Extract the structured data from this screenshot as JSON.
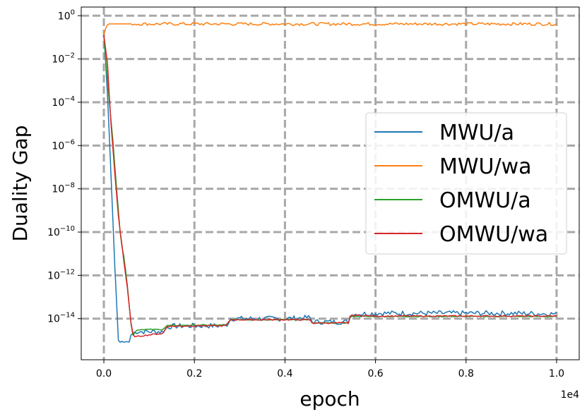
{
  "chart_data": {
    "type": "line",
    "xlabel": "epoch",
    "ylabel": "Duality Gap",
    "x_offset_label": "1e4",
    "xlim": [
      -500,
      10500
    ],
    "ylog_range": [
      -15.9,
      0.4
    ],
    "y_scale": "log",
    "grid": true,
    "legend_position": "center-right",
    "x_ticks": [
      {
        "value": 0,
        "label": "0.0"
      },
      {
        "value": 2000,
        "label": "0.2"
      },
      {
        "value": 4000,
        "label": "0.4"
      },
      {
        "value": 6000,
        "label": "0.6"
      },
      {
        "value": 8000,
        "label": "0.8"
      },
      {
        "value": 10000,
        "label": "1.0"
      }
    ],
    "y_ticks": [
      {
        "exp": 0,
        "base": "10",
        "sup": "0"
      },
      {
        "exp": -2,
        "base": "10",
        "sup": "−2"
      },
      {
        "exp": -4,
        "base": "10",
        "sup": "−4"
      },
      {
        "exp": -6,
        "base": "10",
        "sup": "−6"
      },
      {
        "exp": -8,
        "base": "10",
        "sup": "−8"
      },
      {
        "exp": -10,
        "base": "10",
        "sup": "−10"
      },
      {
        "exp": -12,
        "base": "10",
        "sup": "−12"
      },
      {
        "exp": -14,
        "base": "10",
        "sup": "−14"
      }
    ],
    "series": [
      {
        "name": "MWU/a",
        "color": "#1f77b4",
        "noise": 0.12,
        "points": [
          [
            0,
            -0.9
          ],
          [
            50,
            -2.5
          ],
          [
            100,
            -4.5
          ],
          [
            150,
            -7.0
          ],
          [
            200,
            -9.5
          ],
          [
            240,
            -11.5
          ],
          [
            280,
            -13.2
          ],
          [
            300,
            -14.3
          ],
          [
            320,
            -15.0
          ],
          [
            350,
            -15.1
          ],
          [
            400,
            -15.05
          ],
          [
            450,
            -15.1
          ],
          [
            500,
            -15.05
          ],
          [
            550,
            -15.1
          ],
          [
            580,
            -15.05
          ],
          [
            600,
            -14.75
          ],
          [
            700,
            -14.6
          ],
          [
            1000,
            -14.6
          ],
          [
            1300,
            -14.6
          ],
          [
            1400,
            -14.4
          ],
          [
            1500,
            -14.35
          ],
          [
            2000,
            -14.33
          ],
          [
            2700,
            -14.33
          ],
          [
            2800,
            -14.0
          ],
          [
            3500,
            -14.0
          ],
          [
            4000,
            -14.0
          ],
          [
            4550,
            -13.95
          ],
          [
            4600,
            -14.15
          ],
          [
            5000,
            -14.15
          ],
          [
            5400,
            -14.15
          ],
          [
            5450,
            -13.8
          ],
          [
            6000,
            -13.75
          ],
          [
            7000,
            -13.75
          ],
          [
            8000,
            -13.75
          ],
          [
            9000,
            -13.75
          ],
          [
            10000,
            -13.78
          ]
        ]
      },
      {
        "name": "MWU/wa",
        "color": "#ff7f0e",
        "noise": 0.07,
        "points": [
          [
            0,
            -0.9
          ],
          [
            30,
            -0.65
          ],
          [
            60,
            -0.45
          ],
          [
            100,
            -0.38
          ],
          [
            500,
            -0.38
          ],
          [
            2000,
            -0.38
          ],
          [
            4000,
            -0.38
          ],
          [
            6000,
            -0.38
          ],
          [
            8000,
            -0.38
          ],
          [
            10000,
            -0.38
          ]
        ]
      },
      {
        "name": "OMWU/a",
        "color": "#2ca02c",
        "noise": 0.02,
        "points": [
          [
            0,
            -0.9
          ],
          [
            100,
            -3.5
          ],
          [
            200,
            -5.8
          ],
          [
            300,
            -8.5
          ],
          [
            380,
            -10.5
          ],
          [
            450,
            -11.2
          ],
          [
            520,
            -12.5
          ],
          [
            580,
            -13.8
          ],
          [
            620,
            -14.7
          ],
          [
            650,
            -14.8
          ],
          [
            700,
            -14.55
          ],
          [
            800,
            -14.5
          ],
          [
            1300,
            -14.5
          ],
          [
            1400,
            -14.32
          ],
          [
            2000,
            -14.3
          ],
          [
            2700,
            -14.3
          ],
          [
            2800,
            -14.05
          ],
          [
            3500,
            -14.05
          ],
          [
            4550,
            -14.05
          ],
          [
            4600,
            -14.2
          ],
          [
            5400,
            -14.2
          ],
          [
            5450,
            -13.9
          ],
          [
            6000,
            -13.9
          ],
          [
            8000,
            -13.9
          ],
          [
            10000,
            -13.9
          ]
        ]
      },
      {
        "name": "OMWU/wa",
        "color": "#d62728",
        "noise": 0.03,
        "points": [
          [
            0,
            -0.9
          ],
          [
            80,
            -2.2
          ],
          [
            150,
            -4.8
          ],
          [
            250,
            -7.5
          ],
          [
            330,
            -9.5
          ],
          [
            400,
            -10.6
          ],
          [
            450,
            -11.5
          ],
          [
            520,
            -12.6
          ],
          [
            580,
            -13.8
          ],
          [
            620,
            -14.6
          ],
          [
            650,
            -14.75
          ],
          [
            700,
            -14.85
          ],
          [
            800,
            -14.8
          ],
          [
            1000,
            -14.75
          ],
          [
            1200,
            -14.7
          ],
          [
            1300,
            -14.7
          ],
          [
            1400,
            -14.35
          ],
          [
            1500,
            -14.35
          ],
          [
            2000,
            -14.33
          ],
          [
            2700,
            -14.33
          ],
          [
            2800,
            -14.05
          ],
          [
            3500,
            -14.05
          ],
          [
            4550,
            -14.05
          ],
          [
            4600,
            -14.2
          ],
          [
            5400,
            -14.2
          ],
          [
            5450,
            -13.85
          ],
          [
            5600,
            -13.85
          ],
          [
            6000,
            -13.88
          ],
          [
            8000,
            -13.88
          ],
          [
            10000,
            -13.88
          ]
        ]
      }
    ]
  }
}
